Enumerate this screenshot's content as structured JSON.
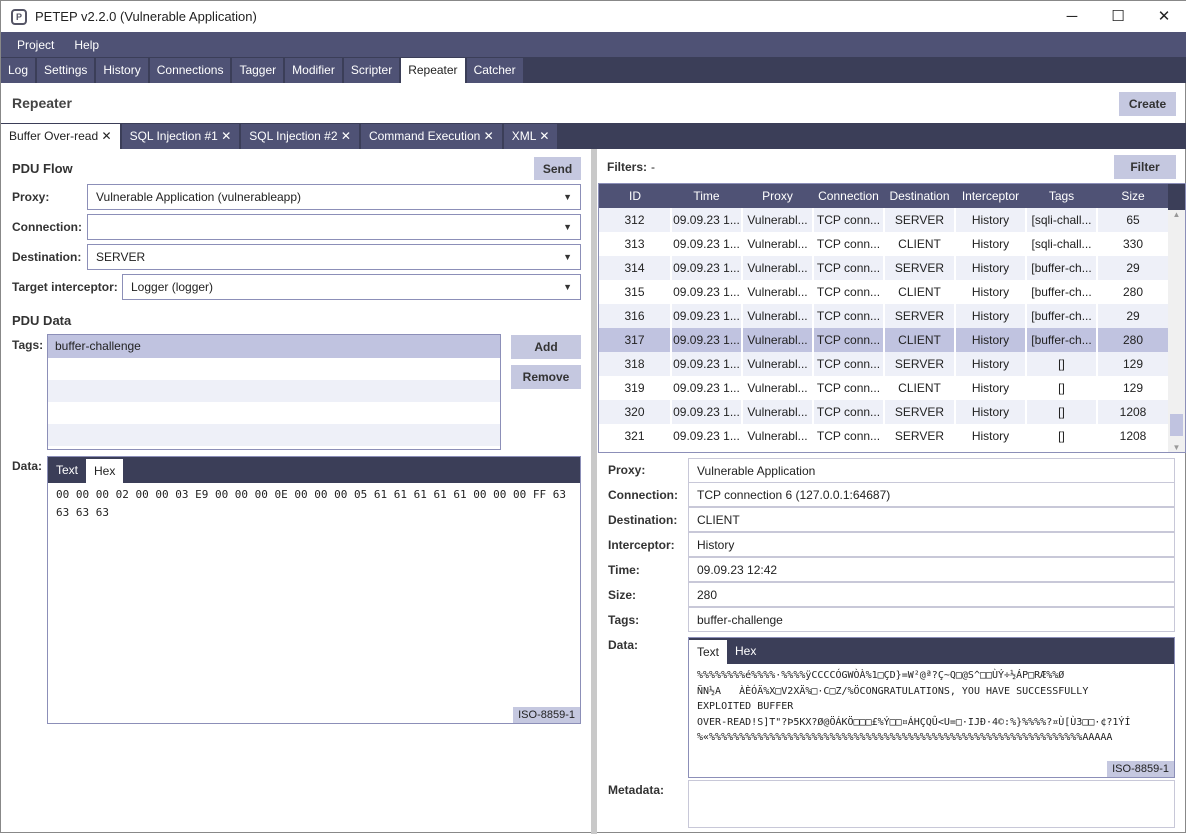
{
  "window": {
    "title": "PETEP v2.2.0 (Vulnerable Application)",
    "minimize": "─",
    "maximize": "☐",
    "close": "✕"
  },
  "menu": [
    "Project",
    "Help"
  ],
  "main_tabs": [
    "Log",
    "Settings",
    "History",
    "Connections",
    "Tagger",
    "Modifier",
    "Scripter",
    "Repeater",
    "Catcher"
  ],
  "page": {
    "title": "Repeater",
    "create": "Create"
  },
  "sub_tabs": [
    {
      "label": "Buffer Over-read",
      "close": "✕"
    },
    {
      "label": "SQL Injection #1",
      "close": "✕"
    },
    {
      "label": "SQL Injection #2",
      "close": "✕"
    },
    {
      "label": "Command Execution",
      "close": "✕"
    },
    {
      "label": "XML",
      "close": "✕"
    }
  ],
  "left": {
    "pdu_flow": "PDU Flow",
    "send": "Send",
    "proxy_label": "Proxy:",
    "proxy": "Vulnerable Application (vulnerableapp)",
    "connection_label": "Connection:",
    "connection": "",
    "destination_label": "Destination:",
    "destination": "SERVER",
    "interceptor_label": "Target interceptor:",
    "interceptor": "Logger (logger)",
    "pdu_data": "PDU Data",
    "tags_label": "Tags:",
    "tags": [
      "buffer-challenge"
    ],
    "add": "Add",
    "remove": "Remove",
    "data_label": "Data:",
    "tab_text": "Text",
    "tab_hex": "Hex",
    "data": "00 00 00 02 00 00 03 E9 00 00 00 0E 00 00 00 05 61 61 61 61 61 00 00 00 FF 63 63 63 63",
    "encoding": "ISO-8859-1"
  },
  "right": {
    "filters_label": "Filters:",
    "filters": "-",
    "filter": "Filter",
    "columns": [
      "ID",
      "Time",
      "Proxy",
      "Connection",
      "Destination",
      "Interceptor",
      "Tags",
      "Size"
    ],
    "rows": [
      [
        "312",
        "09.09.23 1...",
        "Vulnerabl...",
        "TCP conn...",
        "SERVER",
        "History",
        "[sqli-chall...",
        "65"
      ],
      [
        "313",
        "09.09.23 1...",
        "Vulnerabl...",
        "TCP conn...",
        "CLIENT",
        "History",
        "[sqli-chall...",
        "330"
      ],
      [
        "314",
        "09.09.23 1...",
        "Vulnerabl...",
        "TCP conn...",
        "SERVER",
        "History",
        "[buffer-ch...",
        "29"
      ],
      [
        "315",
        "09.09.23 1...",
        "Vulnerabl...",
        "TCP conn...",
        "CLIENT",
        "History",
        "[buffer-ch...",
        "280"
      ],
      [
        "316",
        "09.09.23 1...",
        "Vulnerabl...",
        "TCP conn...",
        "SERVER",
        "History",
        "[buffer-ch...",
        "29"
      ],
      [
        "317",
        "09.09.23 1...",
        "Vulnerabl...",
        "TCP conn...",
        "CLIENT",
        "History",
        "[buffer-ch...",
        "280"
      ],
      [
        "318",
        "09.09.23 1...",
        "Vulnerabl...",
        "TCP conn...",
        "SERVER",
        "History",
        "[]",
        "129"
      ],
      [
        "319",
        "09.09.23 1...",
        "Vulnerabl...",
        "TCP conn...",
        "CLIENT",
        "History",
        "[]",
        "129"
      ],
      [
        "320",
        "09.09.23 1...",
        "Vulnerabl...",
        "TCP conn...",
        "SERVER",
        "History",
        "[]",
        "1208"
      ],
      [
        "321",
        "09.09.23 1...",
        "Vulnerabl...",
        "TCP conn...",
        "SERVER",
        "History",
        "[]",
        "1208"
      ]
    ],
    "selected_id": "317",
    "details": [
      {
        "label": "Proxy:",
        "value": "Vulnerable Application"
      },
      {
        "label": "Connection:",
        "value": "TCP connection 6 (127.0.0.1:64687)"
      },
      {
        "label": "Destination:",
        "value": "CLIENT"
      },
      {
        "label": "Interceptor:",
        "value": "History"
      },
      {
        "label": "Time:",
        "value": "09.09.23 12:42"
      },
      {
        "label": "Size:",
        "value": "280"
      },
      {
        "label": "Tags:",
        "value": "buffer-challenge"
      }
    ],
    "data_label": "Data:",
    "tab_text": "Text",
    "tab_hex": "Hex",
    "data": "%%%%%%%%é%%%%·%%%%ÿCCCCÓGWÒÀ%1□ÇD}=W²@ª?Ç~Q□@S^□□ÙÝ÷½ÁP□RÆ%%Ø\nÑN½A   ÀÈÓÄ%X□V2XÄ%□·C□Z/%ÖCONGRATULATIONS, YOU HAVE SUCCESSFULLY\nEXPLOITED BUFFER\nOVER-READ!S]T\"?Þ5KX?Ø@ÖÁKÖ□□□£%Ý□□¤ÁHÇQÛ<U=□·IJÐ·4©:%}%%%%?¤Ù[Ù3□□·¢?1ÝÍ\n%«%%%%%%%%%%%%%%%%%%%%%%%%%%%%%%%%%%%%%%%%%%%%%%%%%%%%%%%%%%%%%%AAAAA",
    "encoding": "ISO-8859-1",
    "metadata_label": "Metadata:"
  },
  "colors": {
    "dark": "#4f5275",
    "darker": "#3b3e58",
    "button": "#c5c8e0",
    "selected": "#c0c3e0"
  }
}
